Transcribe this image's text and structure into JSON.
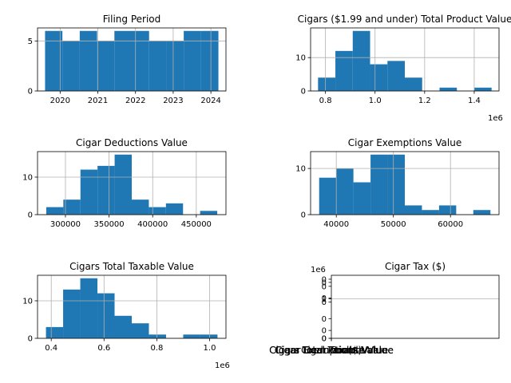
{
  "chart_data": [
    {
      "type": "bar",
      "title": "Filing Period",
      "bin_edges": [
        2019.6,
        2020.06,
        2020.52,
        2020.98,
        2021.44,
        2021.9,
        2022.36,
        2022.82,
        2023.28,
        2023.74,
        2024.2
      ],
      "counts": [
        6,
        5,
        6,
        5,
        6,
        6,
        5,
        5,
        6,
        6
      ],
      "xlim": [
        2019.4,
        2024.4
      ],
      "ylim": [
        0,
        6.3
      ],
      "xticks": [
        2020,
        2021,
        2022,
        2023,
        2024
      ],
      "xtick_labels": [
        "2020",
        "2021",
        "2022",
        "2023",
        "2024"
      ],
      "yticks": [
        0,
        5
      ],
      "ytick_labels": [
        "0",
        "5"
      ],
      "offset_label": "",
      "grid": true
    },
    {
      "type": "bar",
      "title": "Cigars ($1.99 and under) Total Product Value",
      "bin_edges": [
        0.77,
        0.84,
        0.91,
        0.98,
        1.05,
        1.12,
        1.19,
        1.26,
        1.33,
        1.4,
        1.47
      ],
      "counts": [
        4,
        12,
        18,
        8,
        9,
        4,
        0,
        1,
        0,
        1
      ],
      "xlim": [
        0.74,
        1.5
      ],
      "ylim": [
        0,
        18.9
      ],
      "xticks": [
        0.8,
        1.0,
        1.2,
        1.4
      ],
      "xtick_labels": [
        "0.8",
        "1.0",
        "1.2",
        "1.4"
      ],
      "yticks": [
        0,
        10
      ],
      "ytick_labels": [
        "0",
        "10"
      ],
      "offset_label": "1e6",
      "grid": true
    },
    {
      "type": "bar",
      "title": "Cigar Deductions Value",
      "bin_edges": [
        278000,
        297600,
        317200,
        336800,
        356400,
        376000,
        395600,
        415200,
        434800,
        454400,
        474000
      ],
      "counts": [
        2,
        4,
        12,
        13,
        16,
        4,
        2,
        3,
        0,
        1
      ],
      "xlim": [
        268000,
        484000
      ],
      "ylim": [
        0,
        16.8
      ],
      "xticks": [
        300000,
        350000,
        400000,
        450000
      ],
      "xtick_labels": [
        "300000",
        "350000",
        "400000",
        "450000"
      ],
      "yticks": [
        0,
        10
      ],
      "ytick_labels": [
        "0",
        "10"
      ],
      "offset_label": "",
      "grid": true
    },
    {
      "type": "bar",
      "title": "Cigar  Exemptions Value",
      "bin_edges": [
        37000,
        40000,
        43000,
        46000,
        49000,
        52000,
        55000,
        58000,
        61000,
        64000,
        67000
      ],
      "counts": [
        8,
        10,
        7,
        13,
        13,
        2,
        1,
        2,
        0,
        1
      ],
      "xlim": [
        35500,
        68500
      ],
      "ylim": [
        0,
        13.65
      ],
      "xticks": [
        40000,
        50000,
        60000
      ],
      "xtick_labels": [
        "40000",
        "50000",
        "60000"
      ],
      "yticks": [
        0,
        10
      ],
      "ytick_labels": [
        "0",
        "10"
      ],
      "offset_label": "",
      "grid": true
    },
    {
      "type": "bar",
      "title": "Cigars Total Taxable Value",
      "bin_edges": [
        0.38,
        0.445,
        0.51,
        0.575,
        0.64,
        0.705,
        0.77,
        0.835,
        0.9,
        0.965,
        1.03
      ],
      "counts": [
        3,
        13,
        16,
        12,
        6,
        4,
        1,
        0,
        1,
        1
      ],
      "xlim": [
        0.348,
        1.062
      ],
      "ylim": [
        0,
        16.8
      ],
      "xticks": [
        0.4,
        0.6,
        0.8,
        1.0
      ],
      "xtick_labels": [
        "0.4",
        "0.6",
        "0.8",
        "1.0"
      ],
      "yticks": [
        0,
        10
      ],
      "ytick_labels": [
        "0",
        "10"
      ],
      "offset_label": "1e6",
      "grid": true
    },
    {
      "type": "bar",
      "title": "Cigar Tax ($)",
      "note": "broken histogram: mixed-type column, all values collapsed at the left edge",
      "bin_edges": [],
      "counts": [],
      "xlim": [
        0,
        1
      ],
      "ylim": [
        0,
        1.6
      ],
      "xticks": [],
      "xtick_labels": [],
      "yticks": [
        0,
        1
      ],
      "ytick_labels": [
        "0",
        "1"
      ],
      "offset_label": "1e6",
      "ytick_glyph_positions": [
        0.0,
        0.2,
        0.5,
        0.92,
        1.02,
        1.32,
        1.42,
        1.5
      ],
      "ytick_glyph_label": "0",
      "overlapping_xlabels": [
        "Cigar Tax ($)",
        "Cigars Total Product Value",
        "Cigar Deductions Value",
        "Cigar  Exemptions Value",
        "Cigars Total Taxable Value"
      ],
      "grid": true
    }
  ]
}
